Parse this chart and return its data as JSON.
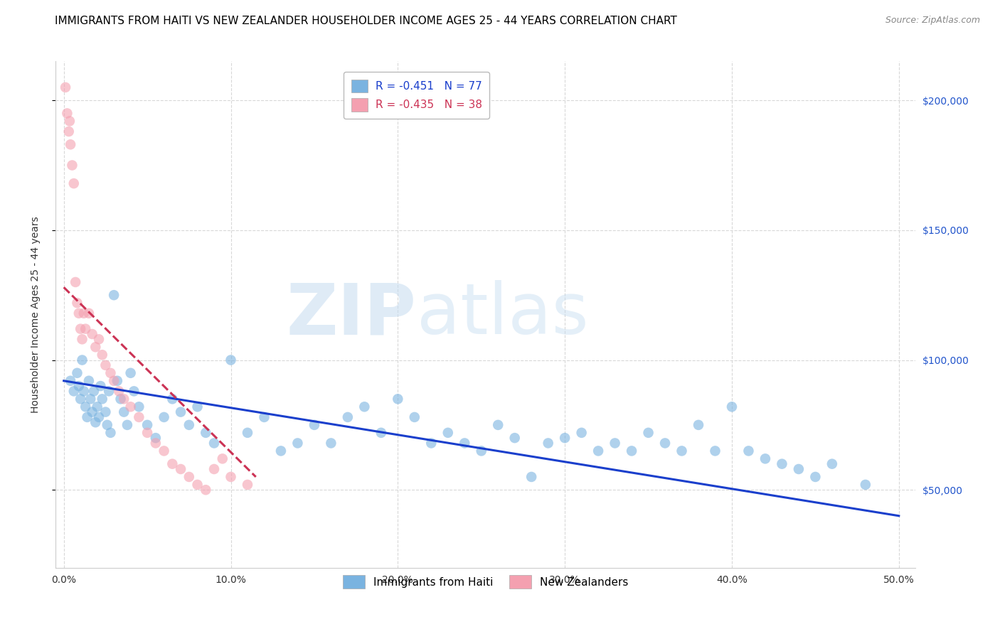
{
  "title": "IMMIGRANTS FROM HAITI VS NEW ZEALANDER HOUSEHOLDER INCOME AGES 25 - 44 YEARS CORRELATION CHART",
  "source": "Source: ZipAtlas.com",
  "ylabel": "Householder Income Ages 25 - 44 years",
  "xlabel_vals": [
    0.0,
    10.0,
    20.0,
    30.0,
    40.0,
    50.0
  ],
  "ylabel_ticks": [
    50000,
    100000,
    150000,
    200000
  ],
  "ylabel_labels": [
    "$50,000",
    "$100,000",
    "$150,000",
    "$200,000"
  ],
  "xlim": [
    -0.5,
    51.0
  ],
  "ylim": [
    20000,
    215000
  ],
  "legend_entries": [
    {
      "label": "R = -0.451   N = 77",
      "color": "#7ab3e0"
    },
    {
      "label": "R = -0.435   N = 38",
      "color": "#f4a0b0"
    }
  ],
  "legend_bottom": [
    {
      "label": "Immigrants from Haiti",
      "color": "#7ab3e0"
    },
    {
      "label": "New Zealanders",
      "color": "#f4a0b0"
    }
  ],
  "haiti_x": [
    0.4,
    0.6,
    0.8,
    0.9,
    1.0,
    1.1,
    1.2,
    1.3,
    1.4,
    1.5,
    1.6,
    1.7,
    1.8,
    1.9,
    2.0,
    2.1,
    2.2,
    2.3,
    2.5,
    2.6,
    2.7,
    2.8,
    3.0,
    3.2,
    3.4,
    3.6,
    3.8,
    4.0,
    4.2,
    4.5,
    5.0,
    5.5,
    6.0,
    6.5,
    7.0,
    7.5,
    8.0,
    8.5,
    9.0,
    10.0,
    11.0,
    12.0,
    13.0,
    14.0,
    15.0,
    16.0,
    17.0,
    18.0,
    19.0,
    20.0,
    21.0,
    22.0,
    23.0,
    24.0,
    25.0,
    26.0,
    27.0,
    28.0,
    29.0,
    30.0,
    31.0,
    32.0,
    33.0,
    34.0,
    35.0,
    36.0,
    37.0,
    38.0,
    39.0,
    40.0,
    41.0,
    42.0,
    43.0,
    44.0,
    45.0,
    46.0,
    48.0
  ],
  "haiti_y": [
    92000,
    88000,
    95000,
    90000,
    85000,
    100000,
    88000,
    82000,
    78000,
    92000,
    85000,
    80000,
    88000,
    76000,
    82000,
    78000,
    90000,
    85000,
    80000,
    75000,
    88000,
    72000,
    125000,
    92000,
    85000,
    80000,
    75000,
    95000,
    88000,
    82000,
    75000,
    70000,
    78000,
    85000,
    80000,
    75000,
    82000,
    72000,
    68000,
    100000,
    72000,
    78000,
    65000,
    68000,
    75000,
    68000,
    78000,
    82000,
    72000,
    85000,
    78000,
    68000,
    72000,
    68000,
    65000,
    75000,
    70000,
    55000,
    68000,
    70000,
    72000,
    65000,
    68000,
    65000,
    72000,
    68000,
    65000,
    75000,
    65000,
    82000,
    65000,
    62000,
    60000,
    58000,
    55000,
    60000,
    52000
  ],
  "nz_x": [
    0.1,
    0.2,
    0.3,
    0.35,
    0.4,
    0.5,
    0.6,
    0.7,
    0.8,
    0.9,
    1.0,
    1.1,
    1.2,
    1.3,
    1.5,
    1.7,
    1.9,
    2.1,
    2.3,
    2.5,
    2.8,
    3.0,
    3.3,
    3.6,
    4.0,
    4.5,
    5.0,
    5.5,
    6.0,
    6.5,
    7.0,
    7.5,
    8.0,
    8.5,
    9.0,
    9.5,
    10.0,
    11.0
  ],
  "nz_y": [
    205000,
    195000,
    188000,
    192000,
    183000,
    175000,
    168000,
    130000,
    122000,
    118000,
    112000,
    108000,
    118000,
    112000,
    118000,
    110000,
    105000,
    108000,
    102000,
    98000,
    95000,
    92000,
    88000,
    85000,
    82000,
    78000,
    72000,
    68000,
    65000,
    60000,
    58000,
    55000,
    52000,
    50000,
    58000,
    62000,
    55000,
    52000
  ],
  "blue_line_x": [
    0.0,
    50.0
  ],
  "blue_line_y": [
    92000,
    40000
  ],
  "pink_line_x": [
    0.0,
    11.5
  ],
  "pink_line_y": [
    128000,
    55000
  ],
  "watermark_zip": "ZIP",
  "watermark_atlas": "atlas",
  "bg_color": "#ffffff",
  "grid_color": "#d8d8d8",
  "blue_dot_color": "#7ab3e0",
  "pink_dot_color": "#f4a0b0",
  "blue_line_color": "#1a3fcc",
  "pink_line_color": "#cc3355",
  "pink_line_style": "--",
  "right_axis_color": "#2255cc",
  "title_fontsize": 11,
  "axis_label_fontsize": 10,
  "dot_size": 110,
  "dot_alpha": 0.6
}
